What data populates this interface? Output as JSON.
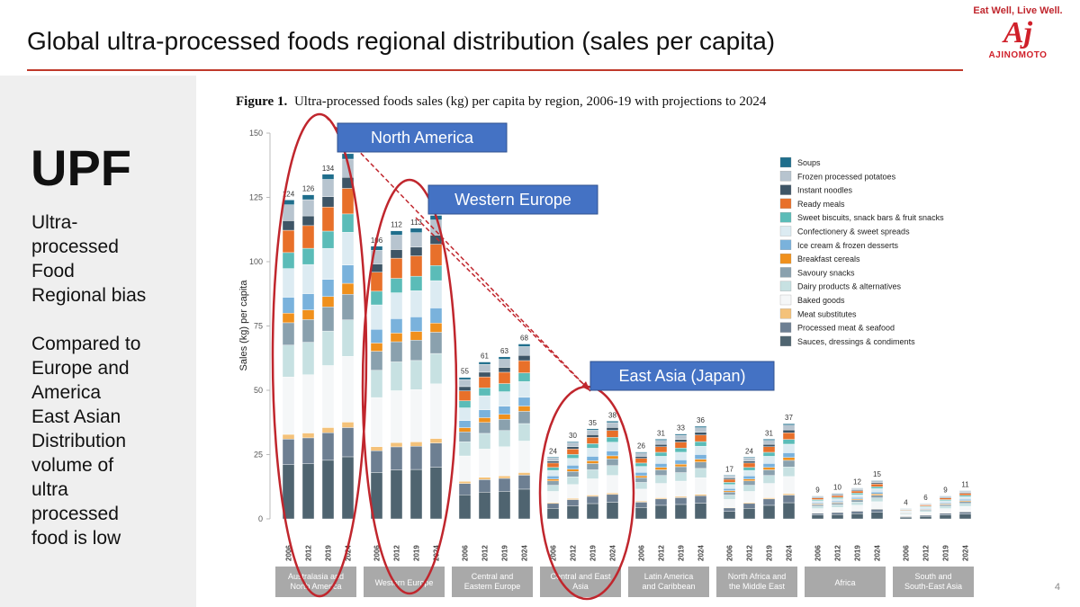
{
  "slide": {
    "title": "Global ultra-processed foods regional distribution (sales per capita)",
    "page_number": "4"
  },
  "brand": {
    "tagline": "Eat Well, Live Well.",
    "logo_text": "Aj",
    "name": "AJINOMOTO",
    "color": "#d0202a"
  },
  "sidebar": {
    "heading": "UPF",
    "text_1": "Ultra-\nprocessed\nFood\nRegional bias",
    "text_2": "Compared to\nEurope and\nAmerica\nEast Asian\nDistribution\nvolume of\nultra\nprocessed\nfood is low"
  },
  "callouts": [
    {
      "label": "North America"
    },
    {
      "label": "Western Europe"
    },
    {
      "label": "East Asia (Japan)"
    }
  ],
  "colors": {
    "accent_red": "#c0392b",
    "callout_blue": "#4472c4"
  },
  "chart_data": {
    "type": "bar",
    "stacked": true,
    "figure_title_bold": "Figure 1.",
    "figure_title": "Ultra-processed foods sales (kg) per capita by region, 2006-19 with projections to 2024",
    "ylabel": "Sales (kg) per capita",
    "xlabel": "",
    "ylim": [
      0,
      150
    ],
    "y_ticks": [
      "0",
      "25",
      "50",
      "75",
      "100",
      "125",
      "150"
    ],
    "year_labels": [
      "2006",
      "2012",
      "2019",
      "2024"
    ],
    "groups": [
      {
        "name": "Australasia and North America",
        "totals": [
          124,
          126,
          134,
          142
        ],
        "total_labels": [
          "124",
          "126",
          "134",
          ""
        ]
      },
      {
        "name": "Western Europe",
        "totals": [
          106,
          112,
          113,
          118
        ],
        "total_labels": [
          "106",
          "112",
          "113",
          ""
        ]
      },
      {
        "name": "Central and Eastern Europe",
        "totals": [
          55,
          61,
          63,
          68
        ],
        "total_labels": [
          "55",
          "61",
          "63",
          "68"
        ]
      },
      {
        "name": "Central and East Asia",
        "totals": [
          24,
          30,
          35,
          38
        ],
        "total_labels": [
          "24",
          "30",
          "35",
          "38"
        ]
      },
      {
        "name": "Latin America and Caribbean",
        "totals": [
          26,
          31,
          33,
          36
        ],
        "total_labels": [
          "26",
          "31",
          "33",
          "36"
        ]
      },
      {
        "name": "North Africa and the Middle East",
        "totals": [
          17,
          24,
          31,
          37
        ],
        "total_labels": [
          "17",
          "24",
          "31",
          "37"
        ]
      },
      {
        "name": "Africa",
        "totals": [
          9,
          10,
          12,
          15
        ],
        "total_labels": [
          "9",
          "10",
          "12",
          "15"
        ]
      },
      {
        "name": "South and South-East Asia",
        "totals": [
          4,
          6,
          9,
          11
        ],
        "total_labels": [
          "4",
          "6",
          "9",
          "11"
        ]
      }
    ],
    "series": [
      {
        "name": "Soups",
        "color": "#1f6e8c"
      },
      {
        "name": "Frozen processed potatoes",
        "color": "#b7c4cf"
      },
      {
        "name": "Instant noodles",
        "color": "#3e5566"
      },
      {
        "name": "Ready meals",
        "color": "#e8702a"
      },
      {
        "name": "Sweet biscuits, snack bars & fruit snacks",
        "color": "#5bbcb8"
      },
      {
        "name": "Confectionery & sweet spreads",
        "color": "#dcebf2"
      },
      {
        "name": "Ice cream & frozen desserts",
        "color": "#7ab2dc"
      },
      {
        "name": "Breakfast cereals",
        "color": "#f0901c"
      },
      {
        "name": "Savoury snacks",
        "color": "#8aa1ae"
      },
      {
        "name": "Dairy products & alternatives",
        "color": "#c7e1e2"
      },
      {
        "name": "Baked goods",
        "color": "#f5f7f8"
      },
      {
        "name": "Meat substitutes",
        "color": "#f4c27a"
      },
      {
        "name": "Processed meat & seafood",
        "color": "#6d7f92"
      },
      {
        "name": "Sauces, dressings & condiments",
        "color": "#4f6470"
      }
    ],
    "segment_shares": [
      0.015,
      0.05,
      0.03,
      0.07,
      0.05,
      0.09,
      0.05,
      0.03,
      0.07,
      0.1,
      0.18,
      0.015,
      0.08,
      0.17
    ]
  }
}
